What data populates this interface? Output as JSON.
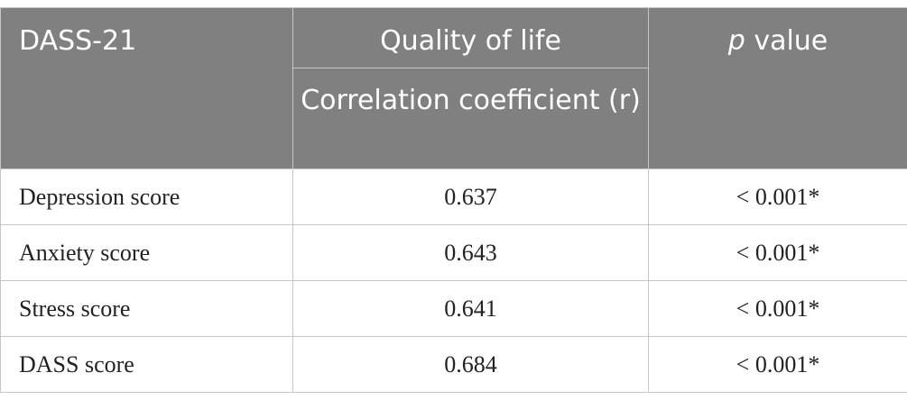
{
  "table": {
    "header": {
      "col1": "DASS-21",
      "group": "Quality of life",
      "subheader": "Correlation coefficient (r)",
      "p_italic": "p",
      "p_rest": " value"
    },
    "rows": [
      {
        "label": "Depression score",
        "r": "0.637",
        "p": "< 0.001*"
      },
      {
        "label": "Anxiety score",
        "r": "0.643",
        "p": "< 0.001*"
      },
      {
        "label": "Stress score",
        "r": "0.641",
        "p": "< 0.001*"
      },
      {
        "label": "DASS score",
        "r": "0.684",
        "p": "< 0.001*"
      }
    ]
  }
}
